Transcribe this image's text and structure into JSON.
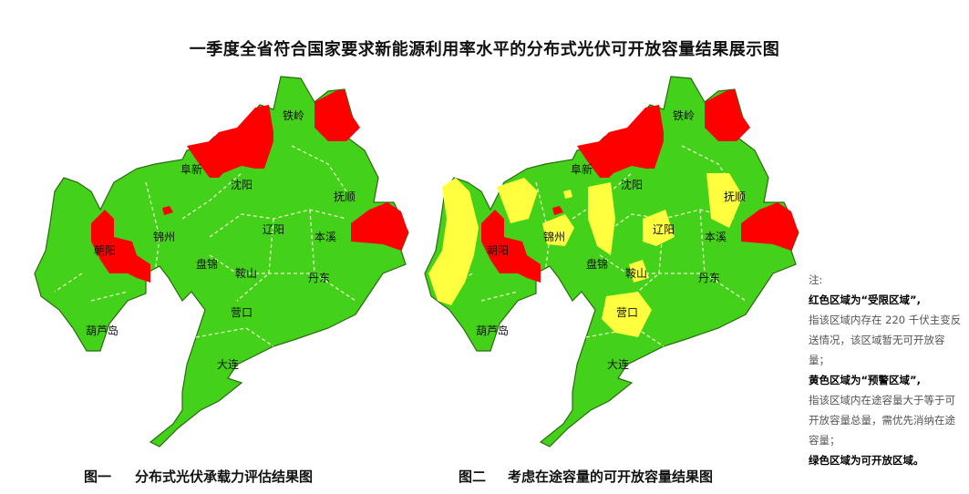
{
  "title": "一季度全省符合国家要求新能源利用率水平的分布式光伏可开放容量结果展示图",
  "colors": {
    "restricted": "#ff0000",
    "warning": "#ffff40",
    "open": "#44d11a"
  },
  "map_labels": [
    "铁岭",
    "阜新",
    "沈阳",
    "抚顺",
    "辽阳",
    "本溪",
    "锦州",
    "朝阳",
    "盘锦",
    "鞍山",
    "丹东",
    "营口",
    "葫芦岛",
    "大连"
  ],
  "figure1": {
    "number": "图一",
    "caption": "分布式光伏承载力评估结果图"
  },
  "figure2": {
    "number": "图二",
    "caption": "考虑在途容量的可开放容量结果图"
  },
  "notes": {
    "heading": "注:",
    "red_title": "红色区域为“受限区域”,",
    "red_desc": "指该区域内存在 220 千伏主变反送情况，该区域暂无可开放容量；",
    "yellow_title": "黄色区域为“预警区域”,",
    "yellow_desc": "指该区域内在途容量大于等于可开放容量总量，需优先消纳在途容量；",
    "green_title": "绿色区域为可开放区域。"
  }
}
